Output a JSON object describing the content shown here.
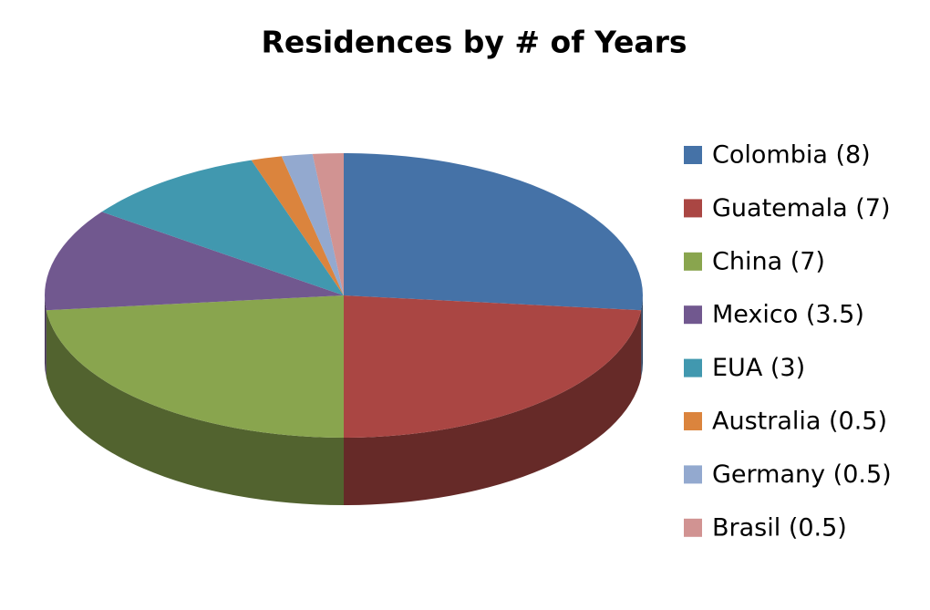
{
  "chart_data": {
    "type": "pie3d",
    "title": "Residences by # of Years",
    "categories": [
      "Colombia (8)",
      "Guatemala (7)",
      "China (7)",
      "Mexico (3.5)",
      "EUA (3)",
      "Australia (0.5)",
      "Germany (0.5)",
      "Brasil (0.5)"
    ],
    "values": [
      8,
      7,
      7,
      3.5,
      3,
      0.5,
      0.5,
      0.5
    ],
    "colors": [
      "#4572a7",
      "#aa4643",
      "#89a54e",
      "#71588f",
      "#4198af",
      "#db843d",
      "#93a9cf",
      "#d19392"
    ],
    "legend": "right"
  }
}
